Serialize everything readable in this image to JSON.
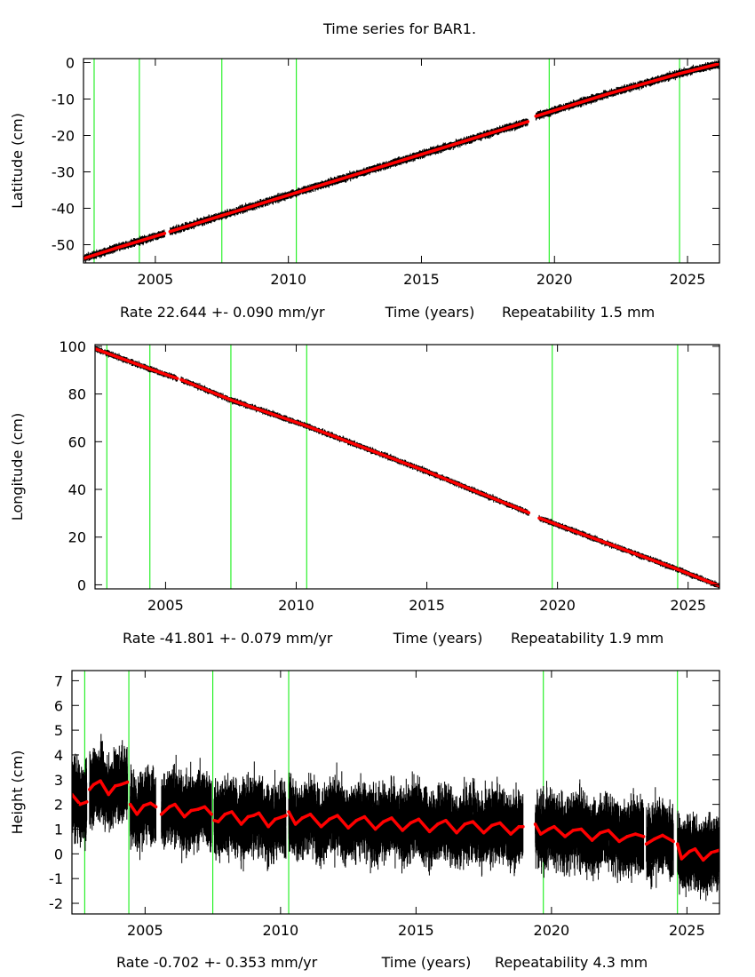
{
  "chart_data": {
    "title": "Time series for BAR1.",
    "colors": {
      "data": "#000000",
      "model": "#ff0000",
      "event_lines": "#00ee00",
      "axes": "#000000"
    },
    "panels": [
      {
        "type": "scatter",
        "ylabel": "Latitude (cm)",
        "xlabel": "Time (years)",
        "rate": "Rate 22.644 +- 0.090 mm/yr",
        "repeatability": "Repeatability 1.5 mm",
        "xlim": [
          2002.3,
          2026.2
        ],
        "ylim": [
          -55,
          1.1
        ],
        "xticks": [
          2005,
          2010,
          2015,
          2020,
          2025
        ],
        "yticks": [
          0,
          -10,
          -20,
          -30,
          -40,
          -50
        ],
        "event_lines": [
          2002.7,
          2004.4,
          2007.5,
          2010.3,
          2019.8,
          2024.7
        ],
        "segments": [
          [
            [
              2002.3,
              -53.8
            ],
            [
              2003.5,
              -51.0
            ],
            [
              2004.5,
              -48.8
            ],
            [
              2005.35,
              -46.9
            ]
          ],
          [
            [
              2005.55,
              -46.4
            ],
            [
              2007.5,
              -42.0
            ],
            [
              2010.3,
              -35.7
            ],
            [
              2015,
              -25.2
            ],
            [
              2019.0,
              -16.2
            ]
          ],
          [
            [
              2019.3,
              -14.7
            ],
            [
              2022,
              -8.6
            ],
            [
              2024.7,
              -3.0
            ],
            [
              2026.2,
              -0.3
            ]
          ]
        ]
      },
      {
        "type": "scatter",
        "ylabel": "Longitude (cm)",
        "xlabel": "Time (years)",
        "rate": "Rate -41.801 +- 0.079 mm/yr",
        "repeatability": "Repeatability 1.9 mm",
        "xlim": [
          2002.3,
          2026.2
        ],
        "ylim": [
          -1.7,
          100.7
        ],
        "xticks": [
          2005,
          2010,
          2015,
          2020,
          2025
        ],
        "yticks": [
          100,
          80,
          60,
          40,
          20,
          0
        ],
        "event_lines": [
          2002.75,
          2004.4,
          2007.5,
          2010.4,
          2019.8,
          2024.6
        ],
        "segments": [
          [
            [
              2002.3,
              99.0
            ],
            [
              2004.4,
              90.5
            ],
            [
              2005.45,
              86.5
            ]
          ],
          [
            [
              2005.6,
              86.0
            ],
            [
              2007.5,
              77.5
            ],
            [
              2010.3,
              67.0
            ],
            [
              2015,
              47.5
            ],
            [
              2018.9,
              30.2
            ]
          ],
          [
            [
              2019.3,
              28.0
            ],
            [
              2022,
              17.0
            ],
            [
              2024.6,
              6.5
            ],
            [
              2026.2,
              -0.5
            ]
          ]
        ]
      },
      {
        "type": "scatter",
        "ylabel": "Height (cm)",
        "xlabel": "Time (years)",
        "rate": "Rate -0.702 +- 0.353 mm/yr",
        "repeatability": "Repeatability 4.3 mm",
        "xlim": [
          2002.3,
          2026.2
        ],
        "ylim": [
          -2.43,
          7.41
        ],
        "xticks": [
          2005,
          2010,
          2015,
          2020,
          2025
        ],
        "yticks": [
          7,
          6,
          5,
          4,
          3,
          2,
          1,
          0,
          -1,
          -2
        ],
        "event_lines": [
          2002.77,
          2004.4,
          2007.5,
          2010.3,
          2019.7,
          2024.65
        ],
        "segments": [
          [
            [
              2002.3,
              2.4
            ],
            [
              2002.6,
              2.0
            ],
            [
              2002.85,
              2.1
            ]
          ],
          [
            [
              2002.95,
              2.6
            ],
            [
              2003.1,
              2.8
            ],
            [
              2003.35,
              2.95
            ],
            [
              2003.65,
              2.4
            ],
            [
              2003.9,
              2.75
            ],
            [
              2004.1,
              2.8
            ],
            [
              2004.35,
              2.9
            ]
          ],
          [
            [
              2004.45,
              2.0
            ],
            [
              2004.7,
              1.6
            ],
            [
              2004.95,
              1.95
            ],
            [
              2005.2,
              2.05
            ],
            [
              2005.4,
              1.9
            ]
          ],
          [
            [
              2005.6,
              1.6
            ],
            [
              2005.9,
              1.9
            ],
            [
              2006.1,
              2.0
            ],
            [
              2006.45,
              1.5
            ],
            [
              2006.7,
              1.75
            ],
            [
              2006.95,
              1.8
            ],
            [
              2007.2,
              1.9
            ],
            [
              2007.45,
              1.6
            ]
          ],
          [
            [
              2007.55,
              1.35
            ],
            [
              2007.7,
              1.3
            ],
            [
              2007.95,
              1.6
            ],
            [
              2008.2,
              1.7
            ],
            [
              2008.55,
              1.2
            ],
            [
              2008.8,
              1.5
            ],
            [
              2009.0,
              1.55
            ],
            [
              2009.2,
              1.65
            ],
            [
              2009.55,
              1.1
            ],
            [
              2009.8,
              1.4
            ],
            [
              2010.2,
              1.55
            ]
          ],
          [
            [
              2010.3,
              1.7
            ],
            [
              2010.55,
              1.2
            ],
            [
              2010.8,
              1.45
            ],
            [
              2011.1,
              1.6
            ],
            [
              2011.5,
              1.1
            ],
            [
              2011.8,
              1.4
            ],
            [
              2012.1,
              1.55
            ],
            [
              2012.5,
              1.05
            ],
            [
              2012.8,
              1.35
            ],
            [
              2013.1,
              1.5
            ],
            [
              2013.5,
              1.0
            ],
            [
              2013.8,
              1.3
            ],
            [
              2014.1,
              1.45
            ],
            [
              2014.5,
              0.95
            ],
            [
              2014.8,
              1.25
            ],
            [
              2015.1,
              1.4
            ],
            [
              2015.5,
              0.9
            ],
            [
              2015.8,
              1.2
            ],
            [
              2016.1,
              1.35
            ],
            [
              2016.5,
              0.85
            ],
            [
              2016.8,
              1.2
            ],
            [
              2017.1,
              1.3
            ],
            [
              2017.5,
              0.85
            ],
            [
              2017.8,
              1.15
            ],
            [
              2018.1,
              1.25
            ],
            [
              2018.5,
              0.8
            ],
            [
              2018.8,
              1.1
            ],
            [
              2018.95,
              1.1
            ]
          ],
          [
            [
              2019.4,
              1.2
            ],
            [
              2019.6,
              0.8
            ],
            [
              2019.9,
              1.0
            ],
            [
              2020.1,
              1.1
            ],
            [
              2020.5,
              0.7
            ],
            [
              2020.8,
              0.95
            ],
            [
              2021.1,
              1.0
            ],
            [
              2021.5,
              0.55
            ],
            [
              2021.8,
              0.85
            ],
            [
              2022.1,
              0.95
            ],
            [
              2022.5,
              0.5
            ],
            [
              2022.8,
              0.7
            ],
            [
              2023.1,
              0.8
            ],
            [
              2023.4,
              0.7
            ]
          ],
          [
            [
              2023.5,
              0.4
            ],
            [
              2023.8,
              0.6
            ],
            [
              2024.1,
              0.75
            ],
            [
              2024.5,
              0.5
            ]
          ],
          [
            [
              2024.65,
              0.4
            ],
            [
              2024.8,
              -0.2
            ],
            [
              2025.1,
              0.1
            ],
            [
              2025.3,
              0.2
            ],
            [
              2025.6,
              -0.25
            ],
            [
              2025.9,
              0.05
            ],
            [
              2026.2,
              0.15
            ]
          ]
        ]
      }
    ]
  }
}
